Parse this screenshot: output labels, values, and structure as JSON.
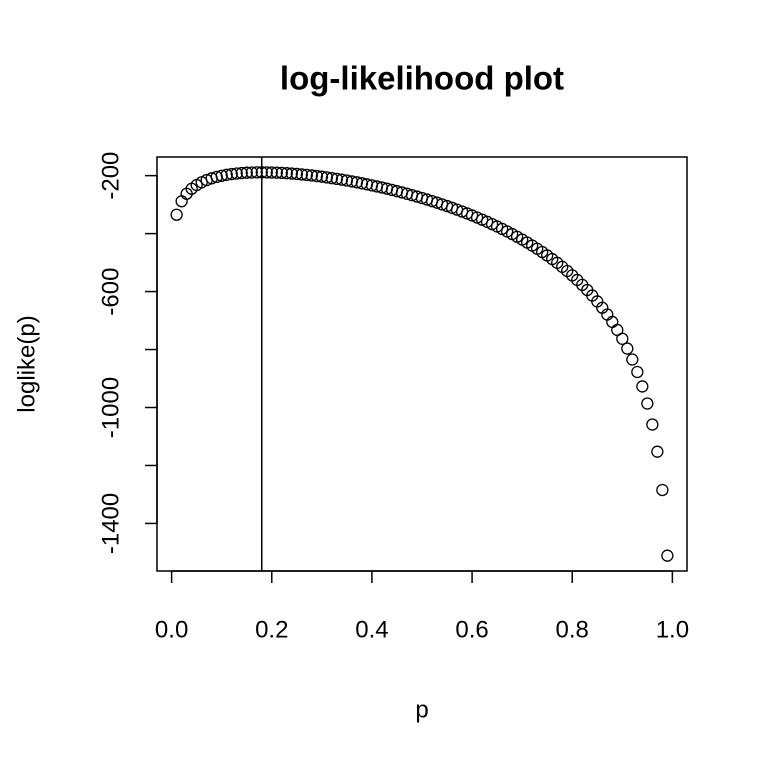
{
  "chart_data": {
    "type": "scatter",
    "title": "log-likelihood plot",
    "xlabel": "p",
    "ylabel": "loglike(p)",
    "x": [
      0.01,
      0.02,
      0.03,
      0.04,
      0.05,
      0.06,
      0.07,
      0.08,
      0.09,
      0.1,
      0.11,
      0.12,
      0.13,
      0.14,
      0.15,
      0.16,
      0.17,
      0.18,
      0.19,
      0.2,
      0.21,
      0.22,
      0.23,
      0.24,
      0.25,
      0.26,
      0.27,
      0.28,
      0.29,
      0.3,
      0.31,
      0.32,
      0.33,
      0.34,
      0.35,
      0.36,
      0.37,
      0.38,
      0.39,
      0.4,
      0.41,
      0.42,
      0.43,
      0.44,
      0.45,
      0.46,
      0.47,
      0.48,
      0.49,
      0.5,
      0.51,
      0.52,
      0.53,
      0.54,
      0.55,
      0.56,
      0.57,
      0.58,
      0.59,
      0.6,
      0.61,
      0.62,
      0.63,
      0.64,
      0.65,
      0.66,
      0.67,
      0.68,
      0.69,
      0.7,
      0.71,
      0.72,
      0.73,
      0.74,
      0.75,
      0.76,
      0.77,
      0.78,
      0.79,
      0.8,
      0.81,
      0.82,
      0.83,
      0.84,
      0.85,
      0.86,
      0.87,
      0.88,
      0.89,
      0.9,
      0.91,
      0.92,
      0.93,
      0.94,
      0.95,
      0.96,
      0.97,
      0.98,
      0.99
    ],
    "values": [
      -334.9,
      -288.3,
      -262.5,
      -245.2,
      -232.5,
      -222.9,
      -215.3,
      -209.2,
      -204.3,
      -200.4,
      -197.1,
      -194.6,
      -192.6,
      -191.1,
      -189.9,
      -189.1,
      -188.7,
      -188.6,
      -188.7,
      -189.1,
      -189.7,
      -190.5,
      -191.5,
      -192.8,
      -194.2,
      -195.8,
      -197.5,
      -199.4,
      -201.4,
      -203.7,
      -206.0,
      -208.5,
      -211.2,
      -214.0,
      -216.9,
      -220.0,
      -223.1,
      -226.5,
      -229.9,
      -233.5,
      -237.3,
      -241.2,
      -245.1,
      -249.3,
      -253.6,
      -258.0,
      -262.6,
      -267.3,
      -272.2,
      -277.2,
      -282.5,
      -287.9,
      -293.4,
      -299.1,
      -304.9,
      -311.0,
      -317.3,
      -323.7,
      -330.4,
      -337.3,
      -344.4,
      -351.8,
      -359.4,
      -367.2,
      -375.3,
      -383.7,
      -392.4,
      -401.5,
      -410.8,
      -420.6,
      -430.7,
      -441.2,
      -452.2,
      -463.5,
      -475.4,
      -487.9,
      -500.8,
      -514.6,
      -528.9,
      -544.0,
      -559.9,
      -576.8,
      -594.6,
      -613.7,
      -634.0,
      -655.8,
      -679.2,
      -704.7,
      -732.4,
      -762.9,
      -796.6,
      -834.5,
      -877.4,
      -927.3,
      -986.3,
      -1058.7,
      -1152.4,
      -1284.6,
      -1511.2
    ],
    "color": "#000000",
    "vline": 0.18,
    "xlim": [
      -0.0292,
      1.0292
    ],
    "xticks": [
      {
        "value": 0,
        "label": "0.0"
      },
      0.2,
      0.4,
      0.6,
      0.8,
      {
        "value": 1,
        "label": "1.0"
      }
    ],
    "ylim": [
      -1564.1,
      -135.7
    ],
    "yticks": [
      -200,
      -600,
      -1000,
      -1400
    ],
    "yminor_ticks": [
      -400,
      -800,
      -1200
    ],
    "grid": false
  }
}
